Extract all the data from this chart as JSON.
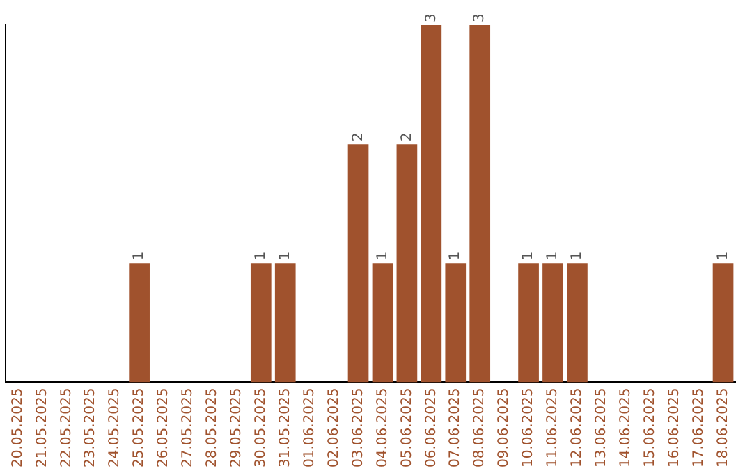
{
  "chart_data": {
    "type": "bar",
    "categories": [
      "20.05.2025",
      "21.05.2025",
      "22.05.2025",
      "23.05.2025",
      "24.05.2025",
      "25.05.2025",
      "26.05.2025",
      "27.05.2025",
      "28.05.2025",
      "29.05.2025",
      "30.05.2025",
      "31.05.2025",
      "01.06.2025",
      "02.06.2025",
      "03.06.2025",
      "04.06.2025",
      "05.06.2025",
      "06.06.2025",
      "07.06.2025",
      "08.06.2025",
      "09.06.2025",
      "10.06.2025",
      "11.06.2025",
      "12.06.2025",
      "13.06.2025",
      "14.06.2025",
      "15.06.2025",
      "16.06.2025",
      "17.06.2025",
      "18.06.2025"
    ],
    "values": [
      0,
      0,
      0,
      0,
      0,
      1,
      0,
      0,
      0,
      0,
      1,
      1,
      0,
      0,
      2,
      1,
      2,
      3,
      1,
      3,
      0,
      1,
      1,
      1,
      0,
      0,
      0,
      0,
      0,
      1
    ],
    "value_labels": [
      null,
      null,
      null,
      null,
      null,
      "1",
      null,
      null,
      null,
      null,
      "1",
      "1",
      null,
      null,
      "2",
      "1",
      "2",
      "3",
      "1",
      "3",
      null,
      "1",
      "1",
      "1",
      null,
      null,
      null,
      null,
      null,
      "1"
    ],
    "color": "#a0522d",
    "tick_labels": "x",
    "grid": false,
    "legend": false
  }
}
